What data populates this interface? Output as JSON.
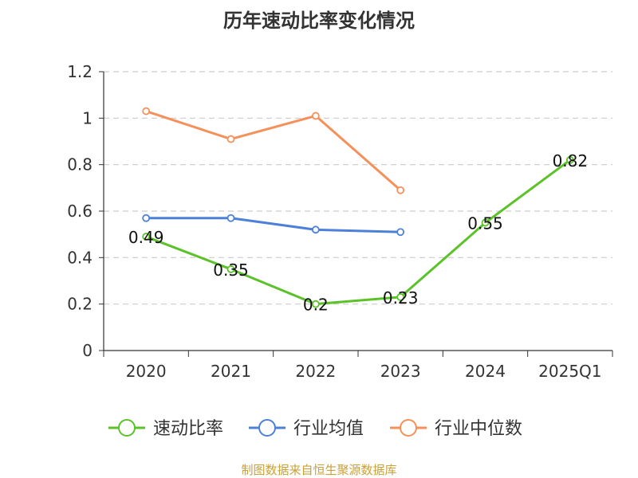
{
  "chart_data": {
    "type": "line",
    "title": "历年速动比率变化情况",
    "categories": [
      "2020",
      "2021",
      "2022",
      "2023",
      "2024",
      "2025Q1"
    ],
    "ylim": [
      0,
      1.2
    ],
    "yticks": [
      "0",
      "0.2",
      "0.4",
      "0.6",
      "0.8",
      "1",
      "1.2"
    ],
    "grid": true,
    "legend_position": "bottom",
    "series": [
      {
        "name": "速动比率",
        "color": "#5bc22a",
        "values": [
          0.49,
          0.35,
          0.2,
          0.23,
          0.55,
          0.82
        ],
        "labels": [
          "0.49",
          "0.35",
          "0.2",
          "0.23",
          "0.55",
          "0.82"
        ]
      },
      {
        "name": "行业均值",
        "color": "#4d80d9",
        "values": [
          0.57,
          0.57,
          0.52,
          0.51,
          null,
          null
        ]
      },
      {
        "name": "行业中位数",
        "color": "#f5905a",
        "values": [
          1.03,
          0.91,
          1.01,
          0.69,
          null,
          null
        ]
      }
    ]
  },
  "source_note": "制图数据来自恒生聚源数据库"
}
